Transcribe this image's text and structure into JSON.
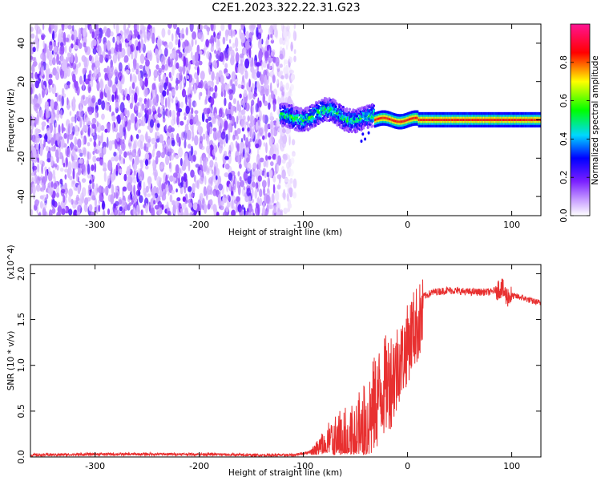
{
  "title": "C2E1.2023.322.22.31.G23",
  "chart_data": [
    {
      "type": "heatmap",
      "xlabel": "Height of straight line (km)",
      "ylabel": "Frequency (Hz)",
      "xlim": [
        -362,
        128
      ],
      "ylim": [
        -50,
        50
      ],
      "xticks": [
        -300,
        -200,
        -100,
        0,
        100
      ],
      "yticks": [
        -40,
        -20,
        0,
        20,
        40
      ],
      "colorbar": {
        "label": "Normalized spectral amplitude",
        "range": [
          0,
          1
        ],
        "ticks": [
          0.0,
          0.2,
          0.4,
          0.6,
          0.8
        ],
        "tick_labels": [
          "0.0",
          "0.2",
          "0.4",
          "0.6",
          "0.8"
        ],
        "colors": [
          "#ffffff",
          "#9b30ff",
          "#0000ff",
          "#00ffff",
          "#00ff00",
          "#ffff00",
          "#ff0000",
          "#ff1493"
        ]
      },
      "regions": [
        {
          "x_range": [
            -362,
            -108
          ],
          "y_range": [
            -50,
            50
          ],
          "amplitude": 0.1,
          "pattern": "noise"
        },
        {
          "x_range": [
            -122,
            -32
          ],
          "center_frequency": 1.5,
          "amplitude": 0.5,
          "pattern": "wavy narrow band"
        },
        {
          "x_range": [
            -32,
            128
          ],
          "center_frequency": 0,
          "amplitude": 0.85,
          "pattern": "steady narrow band"
        }
      ]
    },
    {
      "type": "line",
      "xlabel": "Height of straight line (km)",
      "ylabel": "SNR (10 * v/v)",
      "y_multiplier": "(x10^4)",
      "xlim": [
        -362,
        128
      ],
      "ylim": [
        0,
        2.1
      ],
      "xticks": [
        -300,
        -200,
        -100,
        0,
        100
      ],
      "yticks": [
        0.0,
        0.5,
        1.0,
        1.5,
        2.0
      ],
      "ytick_labels": [
        "0.0",
        "0.5",
        "1.0",
        "1.5",
        "2.0"
      ],
      "series_color": "#e83030",
      "x": [
        -362,
        -300,
        -250,
        -200,
        -150,
        -110,
        -95,
        -85,
        -75,
        -65,
        -55,
        -45,
        -35,
        -25,
        -15,
        -5,
        5,
        15,
        25,
        40,
        60,
        80,
        90,
        95,
        100,
        110,
        120,
        128
      ],
      "y": [
        0.02,
        0.03,
        0.03,
        0.03,
        0.02,
        0.02,
        0.05,
        0.15,
        0.3,
        0.3,
        0.35,
        0.5,
        0.75,
        1.0,
        1.15,
        1.3,
        1.6,
        1.75,
        1.8,
        1.82,
        1.8,
        1.8,
        1.85,
        1.75,
        1.76,
        1.74,
        1.7,
        1.68
      ]
    }
  ]
}
